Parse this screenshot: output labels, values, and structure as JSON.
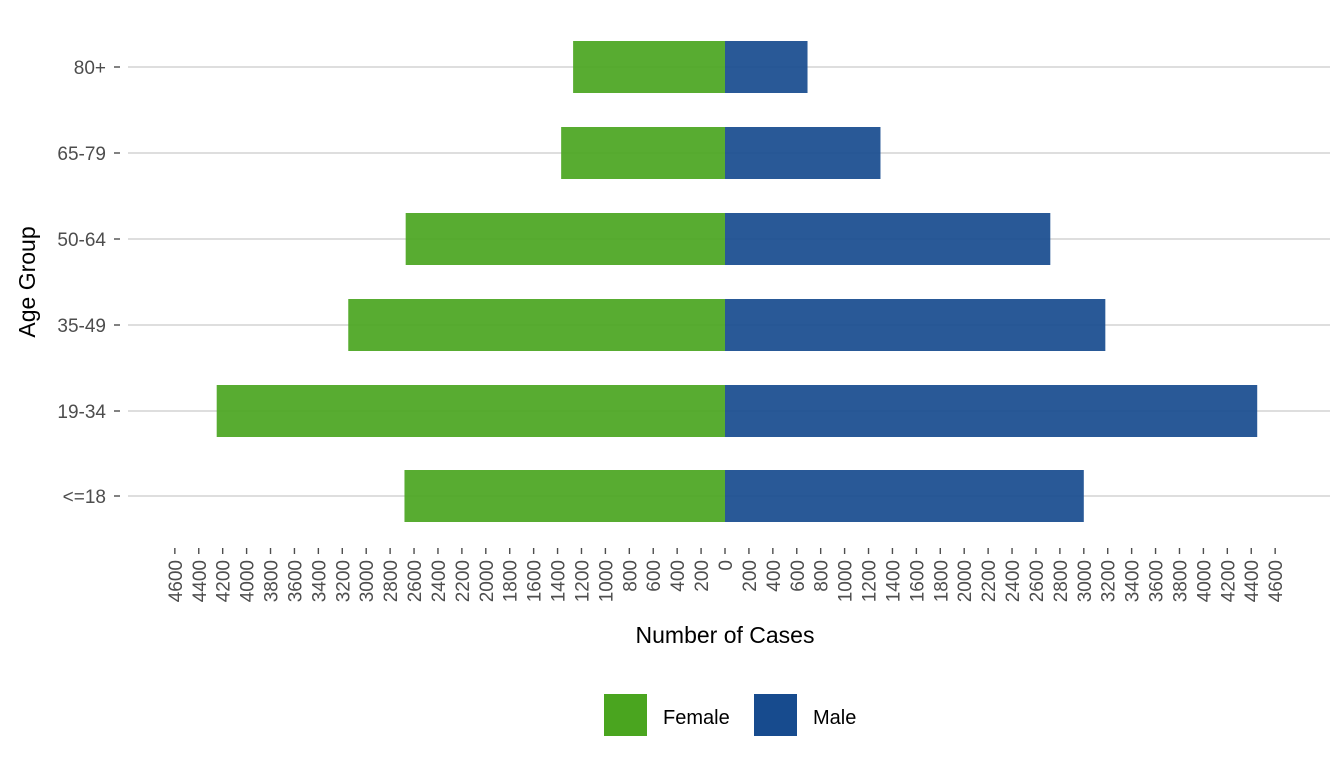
{
  "chart_data": {
    "type": "bar",
    "orientation": "horizontal",
    "title": "",
    "xlabel": "Number of Cases",
    "ylabel": "Age Group",
    "categories": [
      "<=18",
      "19-34",
      "35-49",
      "50-64",
      "65-79",
      "80+"
    ],
    "series": [
      {
        "name": "Female",
        "color": "#4aa51f",
        "values": [
          2680,
          4250,
          3150,
          2670,
          1370,
          1270
        ]
      },
      {
        "name": "Male",
        "color": "#174b8e",
        "values": [
          3000,
          4450,
          3180,
          2720,
          1300,
          690
        ]
      }
    ],
    "xlim": [
      -4600,
      4600
    ],
    "x_ticks": [
      -4600,
      -4400,
      -4200,
      -4000,
      -3800,
      -3600,
      -3400,
      -3200,
      -3000,
      -2800,
      -2600,
      -2400,
      -2200,
      -2000,
      -1800,
      -1600,
      -1400,
      -1200,
      -1000,
      -800,
      -600,
      -400,
      -200,
      0,
      200,
      400,
      600,
      800,
      1000,
      1200,
      1400,
      1600,
      1800,
      2000,
      2200,
      2400,
      2600,
      2800,
      3000,
      3200,
      3400,
      3600,
      3800,
      4000,
      4200,
      4400,
      4600
    ],
    "x_tick_labels_absolute": true,
    "grid": "horizontal",
    "legend": {
      "position": "bottom",
      "items": [
        "Female",
        "Male"
      ]
    }
  }
}
